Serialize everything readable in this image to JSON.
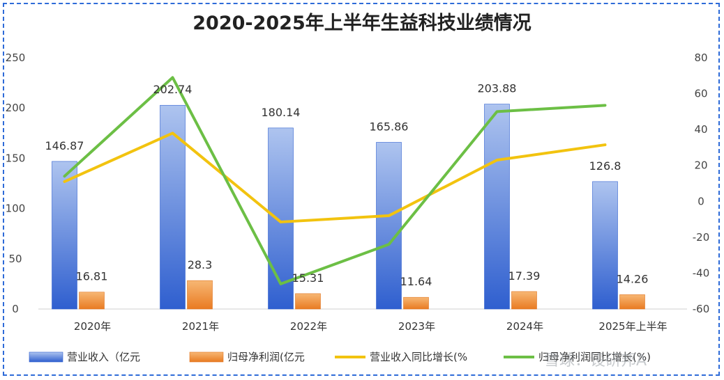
{
  "chart_data": {
    "type": "bar",
    "title": "2020-2025年上半年生益科技业绩情况",
    "categories": [
      "2020年",
      "2021年",
      "2022年",
      "2023年",
      "2024年",
      "2025年上半年"
    ],
    "y_left": {
      "range": [
        0,
        250
      ],
      "ticks": [
        "0",
        "50",
        "100",
        "150",
        "200",
        "250"
      ]
    },
    "y_right": {
      "range": [
        -60,
        80
      ],
      "ticks": [
        "-60",
        "-40",
        "-20",
        "0",
        "20",
        "40",
        "60",
        "80"
      ]
    },
    "series": [
      {
        "name": "营业收入（亿元",
        "type": "bar",
        "axis": "left",
        "color": "#3e6fd3",
        "values": [
          146.87,
          202.74,
          180.14,
          165.86,
          203.88,
          126.8
        ],
        "labels": [
          "146.87",
          "202.74",
          "180.14",
          "165.86",
          "203.88",
          "126.8"
        ]
      },
      {
        "name": "归母净利润(亿元",
        "type": "bar",
        "axis": "left",
        "color": "#ef8a2f",
        "values": [
          16.81,
          28.3,
          15.31,
          11.64,
          17.39,
          14.26
        ],
        "labels": [
          "16.81",
          "28.3",
          "15.31",
          "11.64",
          "17.39",
          "14.26"
        ]
      },
      {
        "name": "营业收入同比增长(%",
        "type": "line",
        "axis": "right",
        "color": "#f2c30f",
        "values": [
          11,
          38,
          -11.5,
          -8,
          23,
          31.5
        ]
      },
      {
        "name": "归母净利润同比增长(%)",
        "type": "line",
        "axis": "right",
        "color": "#6cbf45",
        "values": [
          14,
          69,
          -46,
          -24,
          50,
          53.5
        ]
      }
    ],
    "grid": false,
    "legend": "bottom"
  },
  "watermark": "雪球：设研邦A"
}
